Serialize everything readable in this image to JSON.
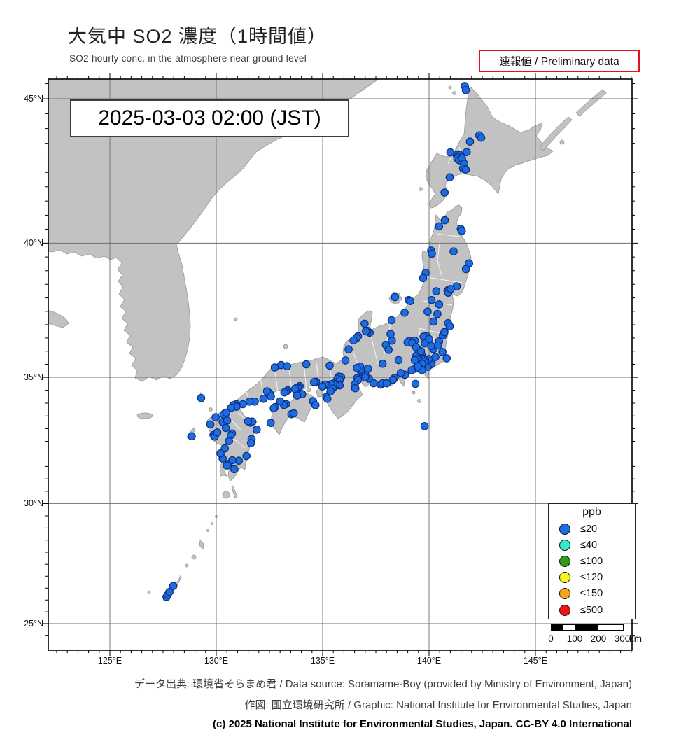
{
  "header": {
    "title": "大気中 SO2 濃度（1時間値）",
    "subtitle": "SO2 hourly conc. in the atmosphere near ground level",
    "preliminary": "速報値 / Preliminary data"
  },
  "timestamp": "2025-03-03  02:00 (JST)",
  "map": {
    "lat_ticks": [
      {
        "label": "45°N",
        "value": 45
      },
      {
        "label": "40°N",
        "value": 40
      },
      {
        "label": "35°N",
        "value": 35
      },
      {
        "label": "30°N",
        "value": 30
      },
      {
        "label": "25°N",
        "value": 25
      }
    ],
    "lon_ticks": [
      {
        "label": "125°E",
        "value": 125
      },
      {
        "label": "130°E",
        "value": 130
      },
      {
        "label": "135°E",
        "value": 135
      },
      {
        "label": "140°E",
        "value": 140
      },
      {
        "label": "145°E",
        "value": 145
      }
    ],
    "legend": {
      "title": "ppb",
      "entries": [
        {
          "label": "≤20",
          "color": "#1d6ce2"
        },
        {
          "label": "≤40",
          "color": "#35e8c9"
        },
        {
          "label": "≤100",
          "color": "#2f9a1e"
        },
        {
          "label": "≤120",
          "color": "#f8f41c"
        },
        {
          "label": "≤150",
          "color": "#f5a21c"
        },
        {
          "label": "≤500",
          "color": "#ef1515"
        }
      ]
    },
    "scalebar": {
      "labels": [
        "0",
        "100",
        "200",
        "300"
      ],
      "unit": "km"
    },
    "station_color": "#1d6ce2",
    "station_stroke": "#0a2f7d",
    "stations": [
      [
        141.68,
        45.42
      ],
      [
        141.73,
        45.28
      ],
      [
        142.36,
        43.77
      ],
      [
        142.45,
        43.69
      ],
      [
        141.92,
        43.56
      ],
      [
        141.77,
        43.2
      ],
      [
        141.0,
        43.19
      ],
      [
        141.3,
        43.1
      ],
      [
        141.38,
        43.06
      ],
      [
        141.46,
        43.1
      ],
      [
        141.52,
        43.03
      ],
      [
        141.33,
        42.98
      ],
      [
        141.42,
        42.92
      ],
      [
        141.55,
        42.98
      ],
      [
        141.65,
        42.8
      ],
      [
        141.6,
        42.64
      ],
      [
        141.72,
        42.6
      ],
      [
        140.97,
        42.33
      ],
      [
        140.73,
        41.8
      ],
      [
        140.74,
        40.82
      ],
      [
        141.49,
        40.51
      ],
      [
        141.54,
        40.44
      ],
      [
        140.47,
        40.6
      ],
      [
        141.15,
        39.7
      ],
      [
        141.88,
        39.27
      ],
      [
        141.73,
        39.06
      ],
      [
        140.1,
        39.73
      ],
      [
        140.13,
        39.62
      ],
      [
        139.84,
        38.92
      ],
      [
        139.72,
        38.73
      ],
      [
        140.34,
        38.25
      ],
      [
        140.12,
        37.92
      ],
      [
        141.3,
        38.43
      ],
      [
        140.87,
        38.27
      ],
      [
        140.93,
        38.31
      ],
      [
        140.9,
        38.19
      ],
      [
        141.02,
        38.33
      ],
      [
        140.47,
        37.76
      ],
      [
        140.39,
        37.4
      ],
      [
        139.93,
        37.49
      ],
      [
        140.89,
        37.06
      ],
      [
        140.97,
        36.94
      ],
      [
        140.21,
        37.12
      ],
      [
        139.04,
        37.92
      ],
      [
        139.12,
        37.88
      ],
      [
        138.85,
        37.45
      ],
      [
        138.24,
        37.17
      ],
      [
        138.4,
        38.03
      ],
      [
        139.06,
        36.39
      ],
      [
        138.99,
        36.33
      ],
      [
        139.33,
        36.4
      ],
      [
        139.21,
        36.31
      ],
      [
        139.88,
        36.57
      ],
      [
        139.74,
        36.55
      ],
      [
        139.8,
        36.3
      ],
      [
        140.0,
        36.46
      ],
      [
        140.47,
        36.37
      ],
      [
        140.65,
        36.6
      ],
      [
        140.72,
        36.72
      ],
      [
        140.2,
        36.08
      ],
      [
        140.1,
        36.2
      ],
      [
        140.63,
        35.97
      ],
      [
        140.42,
        36.22
      ],
      [
        139.65,
        35.86
      ],
      [
        139.55,
        35.91
      ],
      [
        139.4,
        35.82
      ],
      [
        139.49,
        36.05
      ],
      [
        139.39,
        36.15
      ],
      [
        139.62,
        36.0
      ],
      [
        140.12,
        35.6
      ],
      [
        140.1,
        35.5
      ],
      [
        139.98,
        35.7
      ],
      [
        140.3,
        35.78
      ],
      [
        140.83,
        35.73
      ],
      [
        139.93,
        35.4
      ],
      [
        139.7,
        35.69
      ],
      [
        139.76,
        35.71
      ],
      [
        139.82,
        35.67
      ],
      [
        139.63,
        35.72
      ],
      [
        139.52,
        35.68
      ],
      [
        139.45,
        35.7
      ],
      [
        139.33,
        35.66
      ],
      [
        139.78,
        35.6
      ],
      [
        139.64,
        35.45
      ],
      [
        139.62,
        35.38
      ],
      [
        139.68,
        35.52
      ],
      [
        139.58,
        35.32
      ],
      [
        139.67,
        35.28
      ],
      [
        139.36,
        35.33
      ],
      [
        139.18,
        35.27
      ],
      [
        139.48,
        35.42
      ],
      [
        138.57,
        35.66
      ],
      [
        138.87,
        35.1
      ],
      [
        138.67,
        35.17
      ],
      [
        138.38,
        34.98
      ],
      [
        138.31,
        34.91
      ],
      [
        137.73,
        34.72
      ],
      [
        137.82,
        34.77
      ],
      [
        138.01,
        34.77
      ],
      [
        137.39,
        34.77
      ],
      [
        139.36,
        34.75
      ],
      [
        139.79,
        33.1
      ],
      [
        138.19,
        36.65
      ],
      [
        137.97,
        36.24
      ],
      [
        138.25,
        36.4
      ],
      [
        137.82,
        35.52
      ],
      [
        138.1,
        36.05
      ],
      [
        137.21,
        36.7
      ],
      [
        137.1,
        36.77
      ],
      [
        137.03,
        36.75
      ],
      [
        136.97,
        37.04
      ],
      [
        136.66,
        36.57
      ],
      [
        136.6,
        36.5
      ],
      [
        136.45,
        36.41
      ],
      [
        136.22,
        36.07
      ],
      [
        136.07,
        35.65
      ],
      [
        136.9,
        35.18
      ],
      [
        136.97,
        35.13
      ],
      [
        136.85,
        35.1
      ],
      [
        136.92,
        35.06
      ],
      [
        137.0,
        35.2
      ],
      [
        136.8,
        35.22
      ],
      [
        136.8,
        35.3
      ],
      [
        136.76,
        35.42
      ],
      [
        136.61,
        35.36
      ],
      [
        137.13,
        35.33
      ],
      [
        137.17,
        34.95
      ],
      [
        137.0,
        35.0
      ],
      [
        136.62,
        34.97
      ],
      [
        136.66,
        34.9
      ],
      [
        136.51,
        34.72
      ],
      [
        136.53,
        34.58
      ],
      [
        135.87,
        35.01
      ],
      [
        135.76,
        35.03
      ],
      [
        135.7,
        34.95
      ],
      [
        135.8,
        34.89
      ],
      [
        135.8,
        34.69
      ],
      [
        135.5,
        34.69
      ],
      [
        135.56,
        34.65
      ],
      [
        135.44,
        34.62
      ],
      [
        135.61,
        34.71
      ],
      [
        135.5,
        34.76
      ],
      [
        135.4,
        34.73
      ],
      [
        135.47,
        34.57
      ],
      [
        135.37,
        34.46
      ],
      [
        135.17,
        34.24
      ],
      [
        135.22,
        34.17
      ],
      [
        135.18,
        34.7
      ],
      [
        135.1,
        34.72
      ],
      [
        134.99,
        34.65
      ],
      [
        134.69,
        34.83
      ],
      [
        134.6,
        34.82
      ],
      [
        135.33,
        35.45
      ],
      [
        134.23,
        35.5
      ],
      [
        133.05,
        35.47
      ],
      [
        133.33,
        35.43
      ],
      [
        132.75,
        35.38
      ],
      [
        133.92,
        34.66
      ],
      [
        133.85,
        34.6
      ],
      [
        133.77,
        34.59
      ],
      [
        133.7,
        34.55
      ],
      [
        133.36,
        34.5
      ],
      [
        133.28,
        34.45
      ],
      [
        133.2,
        34.42
      ],
      [
        132.46,
        34.41
      ],
      [
        132.52,
        34.36
      ],
      [
        132.38,
        34.46
      ],
      [
        132.57,
        34.26
      ],
      [
        132.22,
        34.17
      ],
      [
        131.81,
        34.06
      ],
      [
        131.57,
        34.06
      ],
      [
        131.25,
        33.96
      ],
      [
        130.94,
        33.96
      ],
      [
        134.04,
        34.35
      ],
      [
        133.8,
        34.3
      ],
      [
        134.55,
        34.08
      ],
      [
        134.66,
        33.92
      ],
      [
        133.28,
        33.97
      ],
      [
        133.18,
        33.93
      ],
      [
        133.0,
        34.07
      ],
      [
        132.77,
        33.85
      ],
      [
        132.7,
        33.8
      ],
      [
        133.53,
        33.57
      ],
      [
        133.64,
        33.6
      ],
      [
        132.56,
        33.23
      ],
      [
        130.87,
        33.89
      ],
      [
        130.8,
        33.92
      ],
      [
        130.95,
        33.86
      ],
      [
        130.7,
        33.82
      ],
      [
        130.4,
        33.6
      ],
      [
        130.35,
        33.56
      ],
      [
        130.47,
        33.63
      ],
      [
        129.97,
        33.45
      ],
      [
        130.3,
        33.26
      ],
      [
        130.51,
        33.32
      ],
      [
        130.45,
        33.03
      ],
      [
        129.72,
        33.17
      ],
      [
        129.29,
        34.2
      ],
      [
        128.85,
        32.7
      ],
      [
        129.87,
        32.75
      ],
      [
        129.93,
        32.69
      ],
      [
        130.05,
        32.85
      ],
      [
        130.74,
        32.81
      ],
      [
        130.68,
        32.74
      ],
      [
        130.6,
        32.51
      ],
      [
        130.4,
        32.22
      ],
      [
        131.6,
        33.24
      ],
      [
        131.69,
        33.28
      ],
      [
        131.49,
        33.29
      ],
      [
        131.9,
        32.96
      ],
      [
        131.66,
        32.59
      ],
      [
        131.63,
        32.43
      ],
      [
        131.42,
        31.92
      ],
      [
        131.06,
        31.73
      ],
      [
        130.56,
        31.6
      ],
      [
        130.5,
        31.54
      ],
      [
        130.76,
        31.75
      ],
      [
        130.3,
        31.82
      ],
      [
        130.85,
        31.39
      ],
      [
        130.2,
        32.02
      ],
      [
        127.66,
        26.13
      ],
      [
        127.72,
        26.22
      ],
      [
        127.8,
        26.34
      ],
      [
        127.98,
        26.59
      ]
    ]
  },
  "footer": {
    "line1": "データ出典: 環境省そらまめ君 / Data source: Soramame-Boy (provided by Ministry of Environment, Japan)",
    "line2": "作図: 国立環境研究所 / Graphic: National Institute for Environmental Studies, Japan",
    "line3": "(c) 2025 National Institute for Environmental Studies, Japan. CC-BY 4.0 International"
  }
}
